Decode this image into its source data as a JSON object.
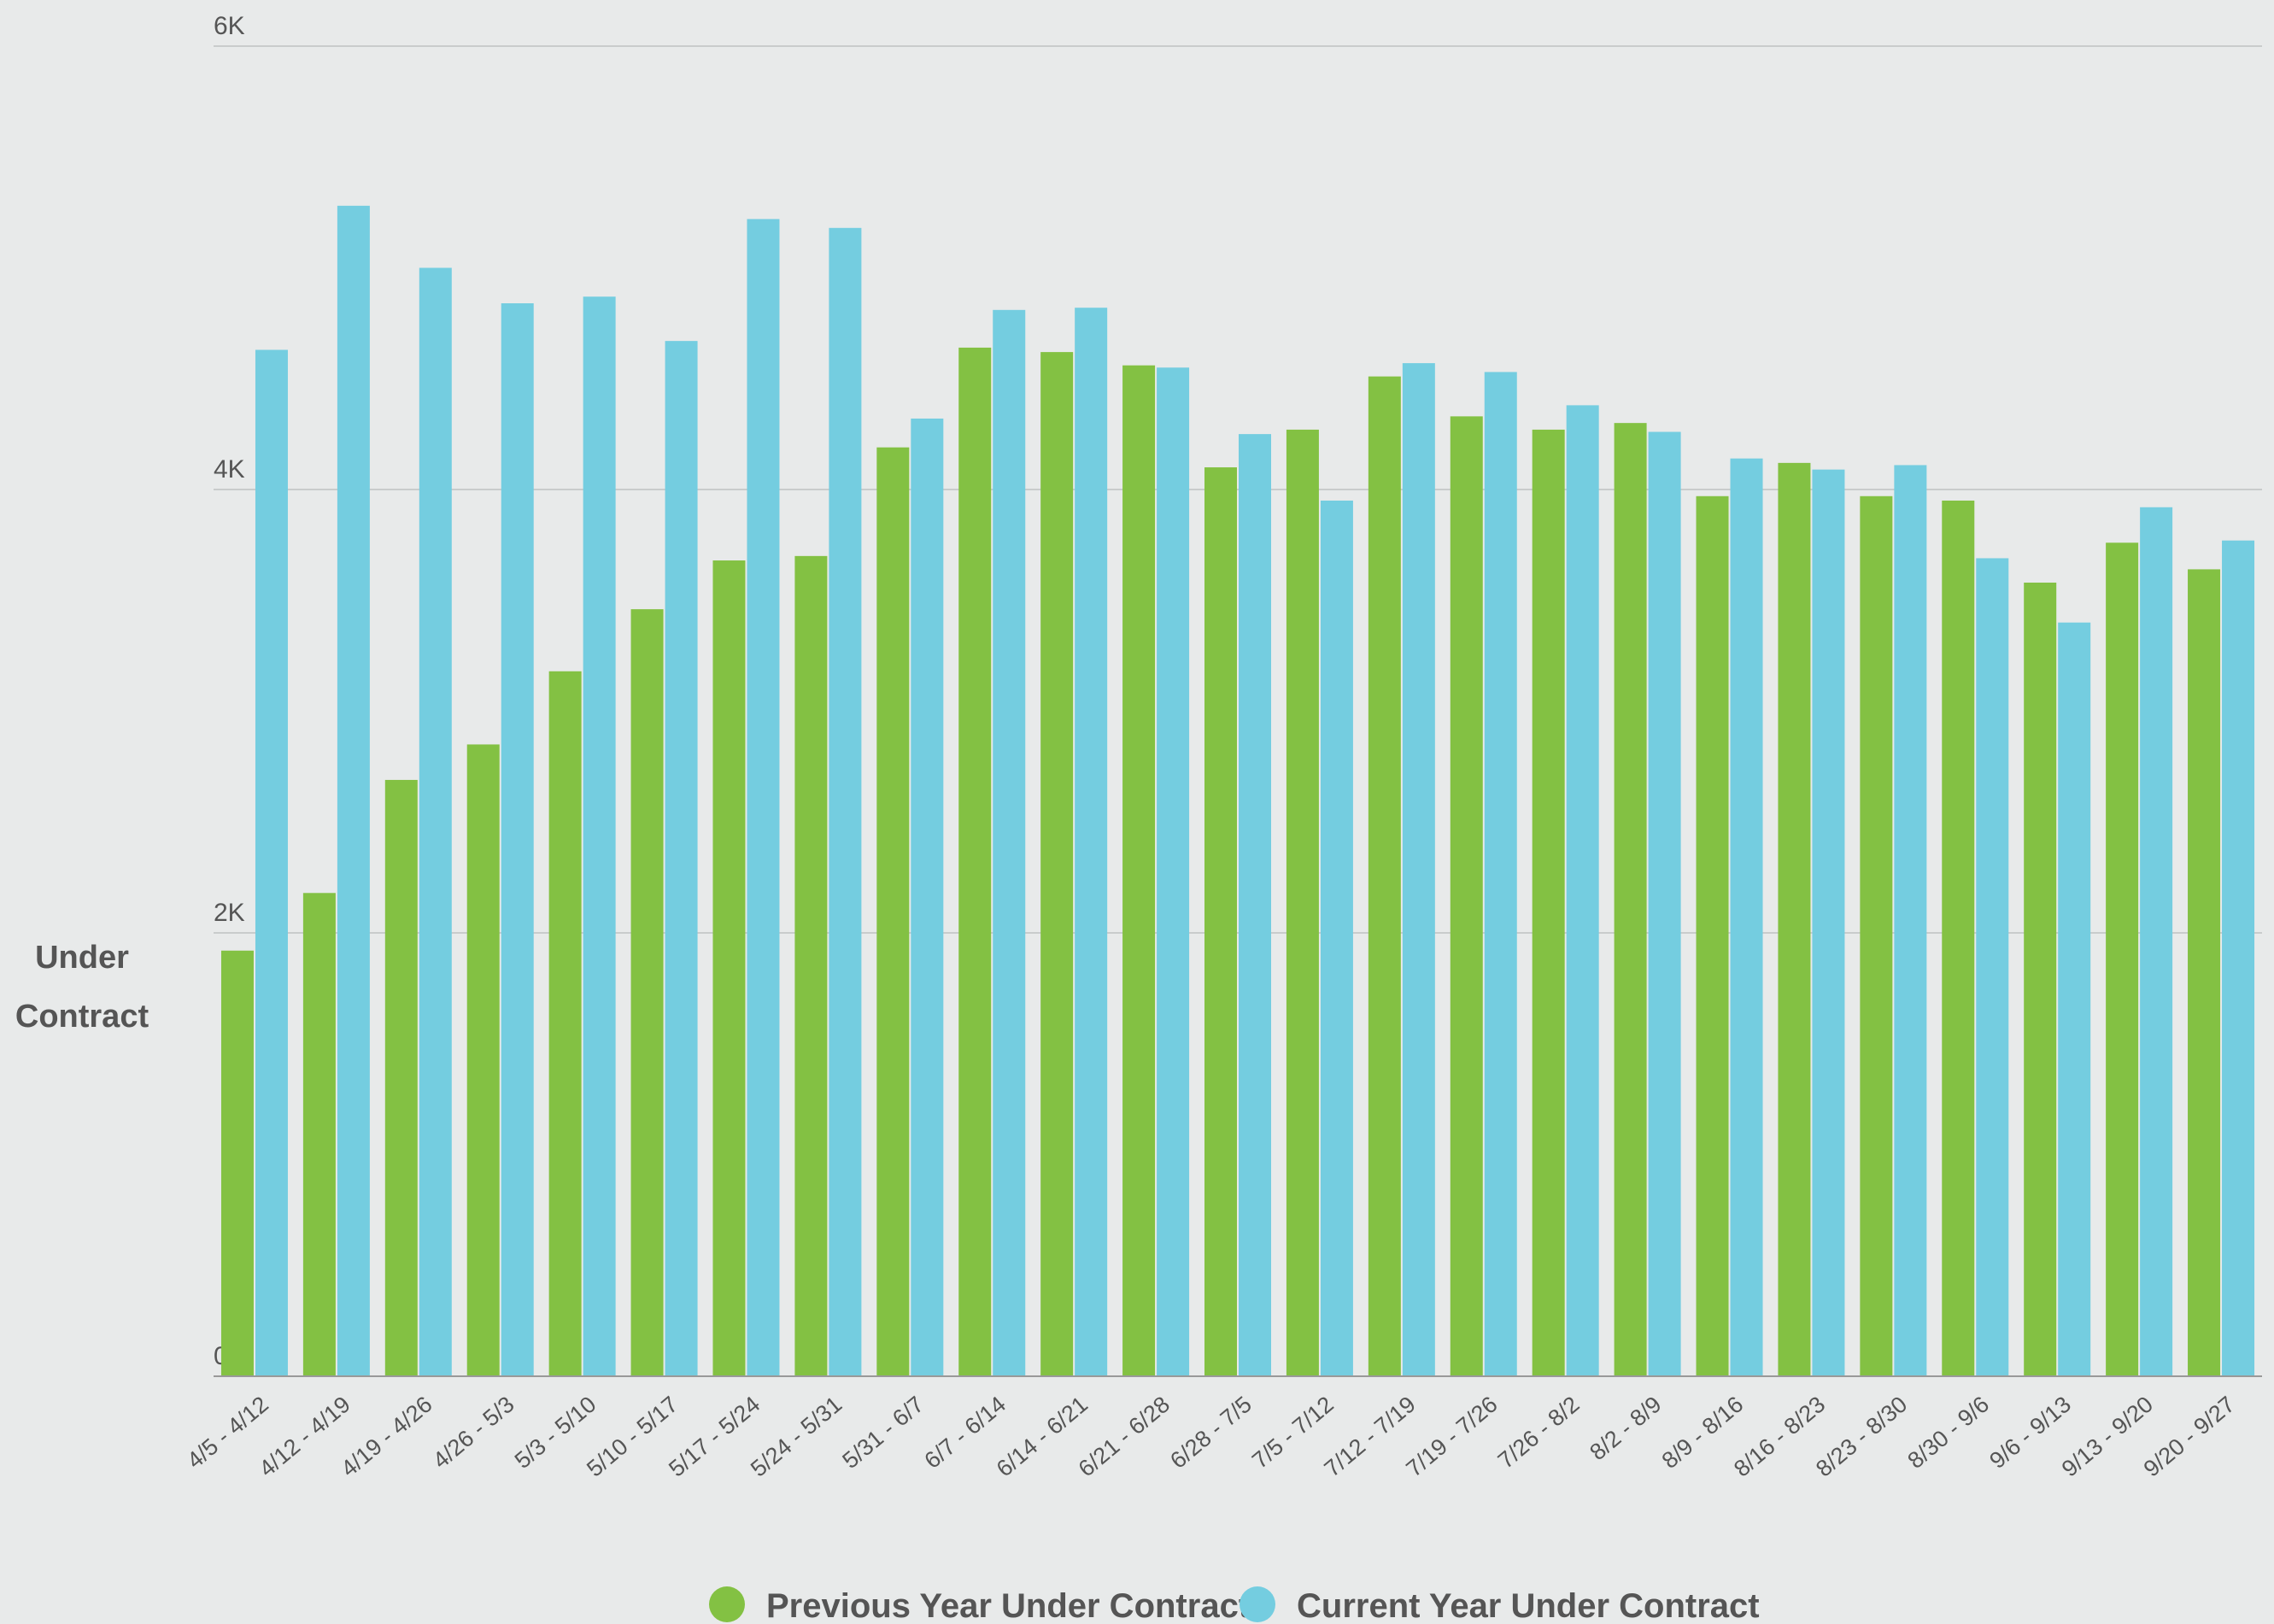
{
  "chart_data": {
    "type": "bar",
    "ylabel": "Under Contract",
    "xlabel": "",
    "ylim": [
      0,
      6000
    ],
    "yticks": [
      {
        "value": 0,
        "label": "0"
      },
      {
        "value": 2000,
        "label": "2K"
      },
      {
        "value": 4000,
        "label": "4K"
      },
      {
        "value": 6000,
        "label": "6K"
      }
    ],
    "grid": true,
    "legend_position": "bottom",
    "categories": [
      "4/5 - 4/12",
      "4/12 - 4/19",
      "4/19 - 4/26",
      "4/26 - 5/3",
      "5/3 - 5/10",
      "5/10 - 5/17",
      "5/17 - 5/24",
      "5/24 - 5/31",
      "5/31 - 6/7",
      "6/7 - 6/14",
      "6/14 - 6/21",
      "6/21 - 6/28",
      "6/28 - 7/5",
      "7/5 - 7/12",
      "7/12 - 7/19",
      "7/19 - 7/26",
      "7/26 - 8/2",
      "8/2 - 8/9",
      "8/9 - 8/16",
      "8/16 - 8/23",
      "8/23 - 8/30",
      "8/30 - 9/6",
      "9/6 - 9/13",
      "9/13 - 9/20",
      "9/20 - 9/27"
    ],
    "series": [
      {
        "name": "Previous Year Under Contract",
        "color": "#83c143",
        "values": [
          1920,
          2180,
          2690,
          2850,
          3180,
          3460,
          3680,
          3700,
          4190,
          4640,
          4620,
          4560,
          4100,
          4270,
          4510,
          4330,
          4270,
          4300,
          3970,
          4120,
          3970,
          3950,
          3580,
          3760,
          3640
        ]
      },
      {
        "name": "Current Year Under Contract",
        "color": "#74cde0",
        "values": [
          4630,
          5280,
          5000,
          4840,
          4870,
          4670,
          5220,
          5180,
          4320,
          4810,
          4820,
          4550,
          4250,
          3950,
          4570,
          4530,
          4380,
          4260,
          4140,
          4090,
          4110,
          3690,
          3400,
          3920,
          3770
        ]
      }
    ]
  }
}
